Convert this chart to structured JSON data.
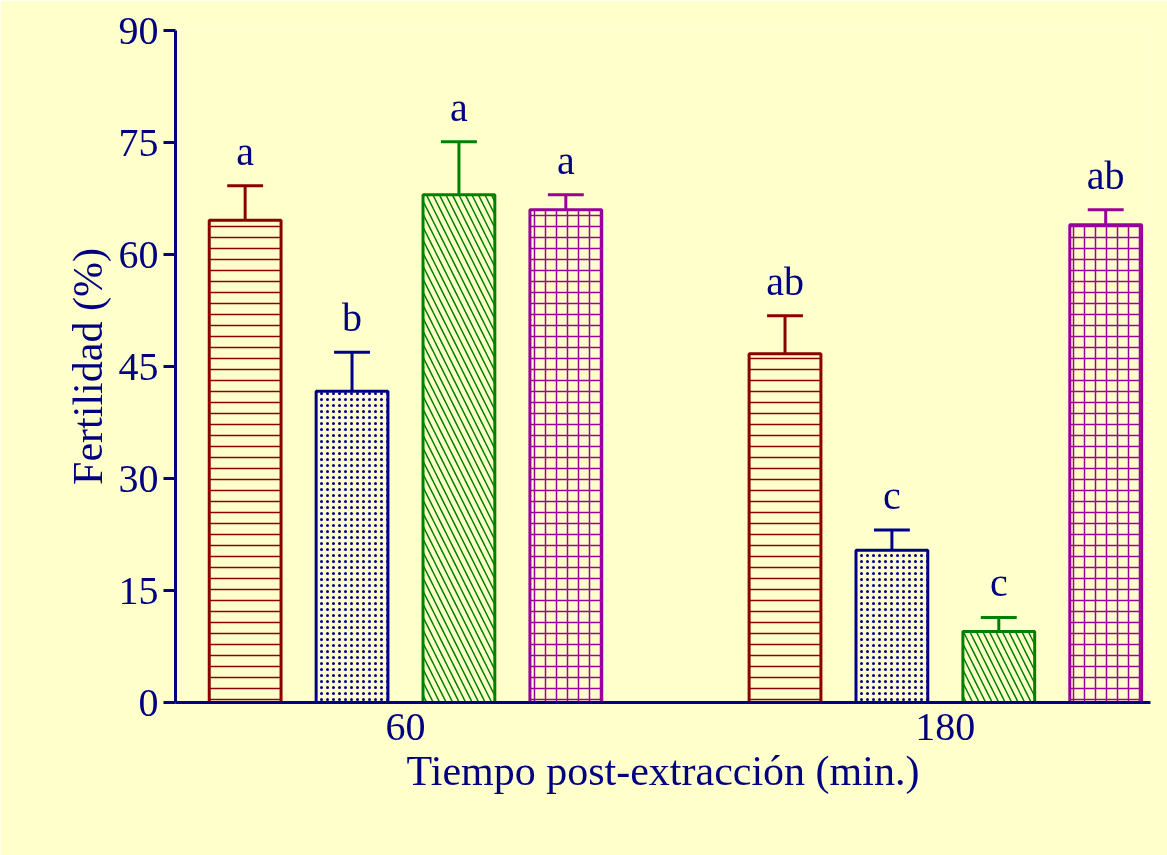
{
  "chart_data": {
    "type": "bar",
    "xlabel": "Tiempo post-extracción (min.)",
    "ylabel": "Fertilidad (%)",
    "categories": [
      "60",
      "180"
    ],
    "series": [
      {
        "color": "#8b0000",
        "values": [
          64.6,
          46.7
        ],
        "errors": [
          [
            64.6,
            69.2
          ],
          [
            46.7,
            51.8
          ]
        ],
        "value_labels": [
          "a",
          "ab"
        ]
      },
      {
        "color": "#00008b",
        "values": [
          41.7,
          20.4
        ],
        "errors": [
          [
            41.7,
            46.9
          ],
          [
            20.4,
            23.1
          ]
        ],
        "value_labels": [
          "b",
          "c"
        ]
      },
      {
        "color": "#008000",
        "values": [
          68.0,
          9.5
        ],
        "errors": [
          [
            68.0,
            75.1
          ],
          [
            9.5,
            11.4
          ]
        ],
        "value_labels": [
          "a",
          "c"
        ]
      },
      {
        "color": "#990099",
        "values": [
          66.0,
          64.0
        ],
        "errors": [
          [
            66.0,
            68.0
          ],
          [
            64.0,
            66.0
          ]
        ],
        "value_labels": [
          "a",
          "ab"
        ]
      }
    ],
    "ylim": [
      0,
      90
    ],
    "yticks": [
      0,
      15,
      30,
      45,
      60,
      75,
      90
    ],
    "grid": false
  }
}
